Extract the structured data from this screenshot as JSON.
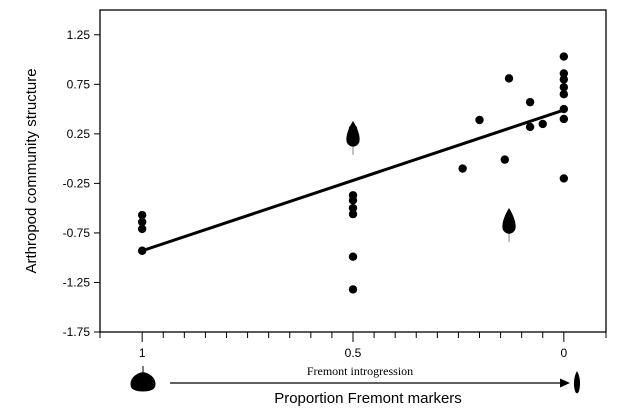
{
  "chart_data": {
    "type": "scatter",
    "title": "",
    "xlabel": "Proportion Fremont markers",
    "ylabel": "Arthropod community structure",
    "x_reversed": true,
    "xlim": [
      1.1,
      -0.1
    ],
    "ylim": [
      -1.75,
      1.5
    ],
    "x_ticks": [
      1,
      0.5,
      0
    ],
    "x_tick_labels": [
      "1",
      "0.5",
      "0"
    ],
    "y_ticks": [
      1.25,
      0.75,
      0.25,
      -0.25,
      -0.75,
      -1.25,
      -1.75
    ],
    "y_tick_labels": [
      "1.25",
      "0.75",
      "0.25",
      "-0.25",
      "-0.75",
      "-1.25",
      "-1.75"
    ],
    "grid": false,
    "legend": "none",
    "annotation": "Fremont introgression",
    "series": [
      {
        "x": [
          1,
          1,
          1,
          1,
          0.5,
          0.5,
          0.5,
          0.5,
          0.5,
          0.5,
          0.5,
          0.5,
          0.5,
          0.5,
          0.24,
          0.2,
          0.14,
          0.13,
          0.08,
          0.08,
          0.05,
          0,
          0,
          0,
          0,
          0,
          0,
          0,
          0
        ],
        "y": [
          -0.57,
          -0.64,
          -0.71,
          -0.93,
          0.3,
          0.27,
          0.24,
          0.21,
          -0.37,
          -0.42,
          -0.5,
          -0.56,
          -0.99,
          -1.32,
          -0.1,
          0.39,
          -0.01,
          0.81,
          0.57,
          0.32,
          0.35,
          1.03,
          0.86,
          0.8,
          0.72,
          0.65,
          0.5,
          0.4,
          -0.2
        ]
      }
    ],
    "regression": {
      "x": [
        1,
        0
      ],
      "y": [
        -0.93,
        0.49
      ]
    },
    "leaf_markers": [
      {
        "x": 0.5,
        "y": 0.24,
        "shape": "narrowleaf-cottonwood-leaf"
      },
      {
        "x": 0.13,
        "y": -0.64,
        "shape": "narrowleaf-cottonwood-leaf"
      }
    ],
    "axis_leaf_icons": {
      "left": "fremont-cottonwood-leaf",
      "right": "narrowleaf-cottonwood-leaf"
    },
    "colors": {
      "ink": "#000000",
      "leaf_stem": "#9a9a9a"
    }
  }
}
